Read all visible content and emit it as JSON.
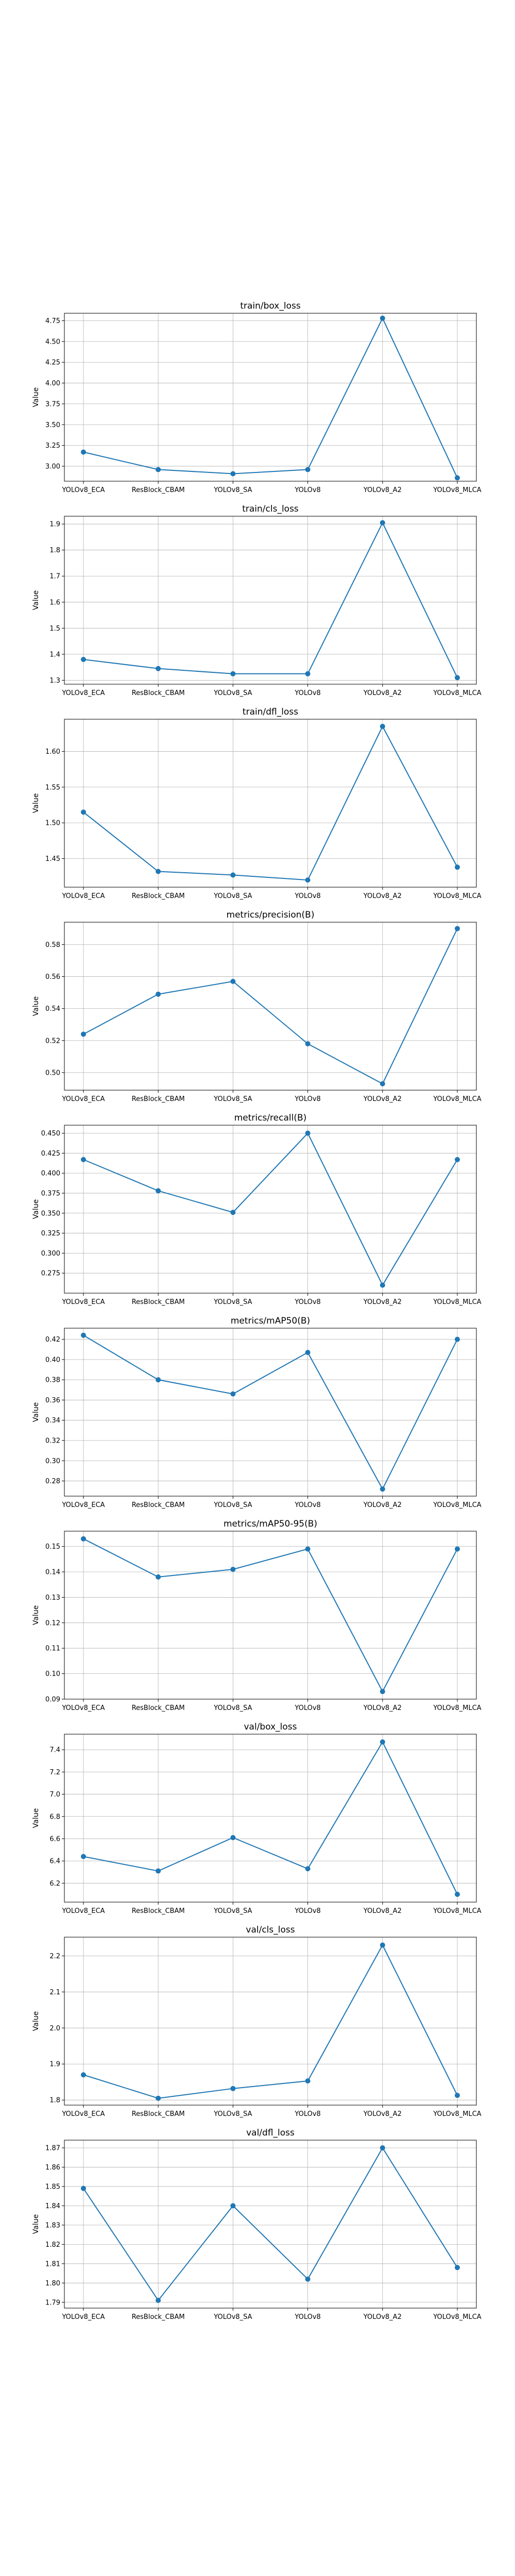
{
  "chart_data": [
    {
      "type": "line",
      "title": "train/box_loss",
      "ylabel": "Value",
      "categories": [
        "YOLOv8_ECA",
        "ResBlock_CBAM",
        "YOLOv8_SA",
        "YOLOv8",
        "YOLOv8_A2",
        "YOLOv8_MLCA"
      ],
      "values": [
        3.17,
        2.96,
        2.91,
        2.96,
        4.78,
        2.86
      ],
      "ylim": [
        2.82,
        4.84
      ],
      "yticks": [
        3.0,
        3.25,
        3.5,
        3.75,
        4.0,
        4.25,
        4.5,
        4.75
      ],
      "ytick_labels": [
        "3.00",
        "3.25",
        "3.50",
        "3.75",
        "4.00",
        "4.25",
        "4.50",
        "4.75"
      ],
      "grid": true
    },
    {
      "type": "line",
      "title": "train/cls_loss",
      "ylabel": "Value",
      "categories": [
        "YOLOv8_ECA",
        "ResBlock_CBAM",
        "YOLOv8_SA",
        "YOLOv8",
        "YOLOv8_A2",
        "YOLOv8_MLCA"
      ],
      "values": [
        1.38,
        1.345,
        1.325,
        1.325,
        1.905,
        1.31
      ],
      "ylim": [
        1.285,
        1.93
      ],
      "yticks": [
        1.3,
        1.4,
        1.5,
        1.6,
        1.7,
        1.8,
        1.9
      ],
      "ytick_labels": [
        "1.3",
        "1.4",
        "1.5",
        "1.6",
        "1.7",
        "1.8",
        "1.9"
      ],
      "grid": true
    },
    {
      "type": "line",
      "title": "train/dfl_loss",
      "ylabel": "Value",
      "categories": [
        "YOLOv8_ECA",
        "ResBlock_CBAM",
        "YOLOv8_SA",
        "YOLOv8",
        "YOLOv8_A2",
        "YOLOv8_MLCA"
      ],
      "values": [
        1.515,
        1.432,
        1.427,
        1.42,
        1.635,
        1.438
      ],
      "ylim": [
        1.41,
        1.645
      ],
      "yticks": [
        1.45,
        1.5,
        1.55,
        1.6
      ],
      "ytick_labels": [
        "1.45",
        "1.50",
        "1.55",
        "1.60"
      ],
      "grid": true
    },
    {
      "type": "line",
      "title": "metrics/precision(B)",
      "ylabel": "Value",
      "categories": [
        "YOLOv8_ECA",
        "ResBlock_CBAM",
        "YOLOv8_SA",
        "YOLOv8",
        "YOLOv8_A2",
        "YOLOv8_MLCA"
      ],
      "values": [
        0.524,
        0.549,
        0.557,
        0.518,
        0.493,
        0.59
      ],
      "ylim": [
        0.489,
        0.594
      ],
      "yticks": [
        0.5,
        0.52,
        0.54,
        0.56,
        0.58
      ],
      "ytick_labels": [
        "0.50",
        "0.52",
        "0.54",
        "0.56",
        "0.58"
      ],
      "grid": true
    },
    {
      "type": "line",
      "title": "metrics/recall(B)",
      "ylabel": "Value",
      "categories": [
        "YOLOv8_ECA",
        "ResBlock_CBAM",
        "YOLOv8_SA",
        "YOLOv8",
        "YOLOv8_A2",
        "YOLOv8_MLCA"
      ],
      "values": [
        0.417,
        0.378,
        0.351,
        0.45,
        0.26,
        0.417
      ],
      "ylim": [
        0.25,
        0.46
      ],
      "yticks": [
        0.275,
        0.3,
        0.325,
        0.35,
        0.375,
        0.4,
        0.425,
        0.45
      ],
      "ytick_labels": [
        "0.275",
        "0.300",
        "0.325",
        "0.350",
        "0.375",
        "0.400",
        "0.425",
        "0.450"
      ],
      "grid": true
    },
    {
      "type": "line",
      "title": "metrics/mAP50(B)",
      "ylabel": "Value",
      "categories": [
        "YOLOv8_ECA",
        "ResBlock_CBAM",
        "YOLOv8_SA",
        "YOLOv8",
        "YOLOv8_A2",
        "YOLOv8_MLCA"
      ],
      "values": [
        0.424,
        0.38,
        0.366,
        0.407,
        0.272,
        0.42
      ],
      "ylim": [
        0.265,
        0.431
      ],
      "yticks": [
        0.28,
        0.3,
        0.32,
        0.34,
        0.36,
        0.38,
        0.4,
        0.42
      ],
      "ytick_labels": [
        "0.28",
        "0.30",
        "0.32",
        "0.34",
        "0.36",
        "0.38",
        "0.40",
        "0.42"
      ],
      "grid": true
    },
    {
      "type": "line",
      "title": "metrics/mAP50-95(B)",
      "ylabel": "Value",
      "categories": [
        "YOLOv8_ECA",
        "ResBlock_CBAM",
        "YOLOv8_SA",
        "YOLOv8",
        "YOLOv8_A2",
        "YOLOv8_MLCA"
      ],
      "values": [
        0.153,
        0.138,
        0.141,
        0.149,
        0.093,
        0.149
      ],
      "ylim": [
        0.09,
        0.156
      ],
      "yticks": [
        0.09,
        0.1,
        0.11,
        0.12,
        0.13,
        0.14,
        0.15
      ],
      "ytick_labels": [
        "0.09",
        "0.10",
        "0.11",
        "0.12",
        "0.13",
        "0.14",
        "0.15"
      ],
      "grid": true
    },
    {
      "type": "line",
      "title": "val/box_loss",
      "ylabel": "Value",
      "categories": [
        "YOLOv8_ECA",
        "ResBlock_CBAM",
        "YOLOv8_SA",
        "YOLOv8",
        "YOLOv8_A2",
        "YOLOv8_MLCA"
      ],
      "values": [
        6.44,
        6.31,
        6.61,
        6.33,
        7.47,
        6.1
      ],
      "ylim": [
        6.03,
        7.54
      ],
      "yticks": [
        6.2,
        6.4,
        6.6,
        6.8,
        7.0,
        7.2,
        7.4
      ],
      "ytick_labels": [
        "6.2",
        "6.4",
        "6.6",
        "6.8",
        "7.0",
        "7.2",
        "7.4"
      ],
      "grid": true
    },
    {
      "type": "line",
      "title": "val/cls_loss",
      "ylabel": "Value",
      "categories": [
        "YOLOv8_ECA",
        "ResBlock_CBAM",
        "YOLOv8_SA",
        "YOLOv8",
        "YOLOv8_A2",
        "YOLOv8_MLCA"
      ],
      "values": [
        1.87,
        1.805,
        1.832,
        1.853,
        2.23,
        1.813
      ],
      "ylim": [
        1.786,
        2.252
      ],
      "yticks": [
        1.8,
        1.9,
        2.0,
        2.1,
        2.2
      ],
      "ytick_labels": [
        "1.8",
        "1.9",
        "2.0",
        "2.1",
        "2.2"
      ],
      "grid": true
    },
    {
      "type": "line",
      "title": "val/dfl_loss",
      "ylabel": "Value",
      "categories": [
        "YOLOv8_ECA",
        "ResBlock_CBAM",
        "YOLOv8_SA",
        "YOLOv8",
        "YOLOv8_A2",
        "YOLOv8_MLCA"
      ],
      "values": [
        1.849,
        1.791,
        1.84,
        1.802,
        1.87,
        1.808
      ],
      "ylim": [
        1.787,
        1.874
      ],
      "yticks": [
        1.79,
        1.8,
        1.81,
        1.82,
        1.83,
        1.84,
        1.85,
        1.86,
        1.87
      ],
      "ytick_labels": [
        "1.79",
        "1.80",
        "1.81",
        "1.82",
        "1.83",
        "1.84",
        "1.85",
        "1.86",
        "1.87"
      ],
      "grid": true
    }
  ]
}
